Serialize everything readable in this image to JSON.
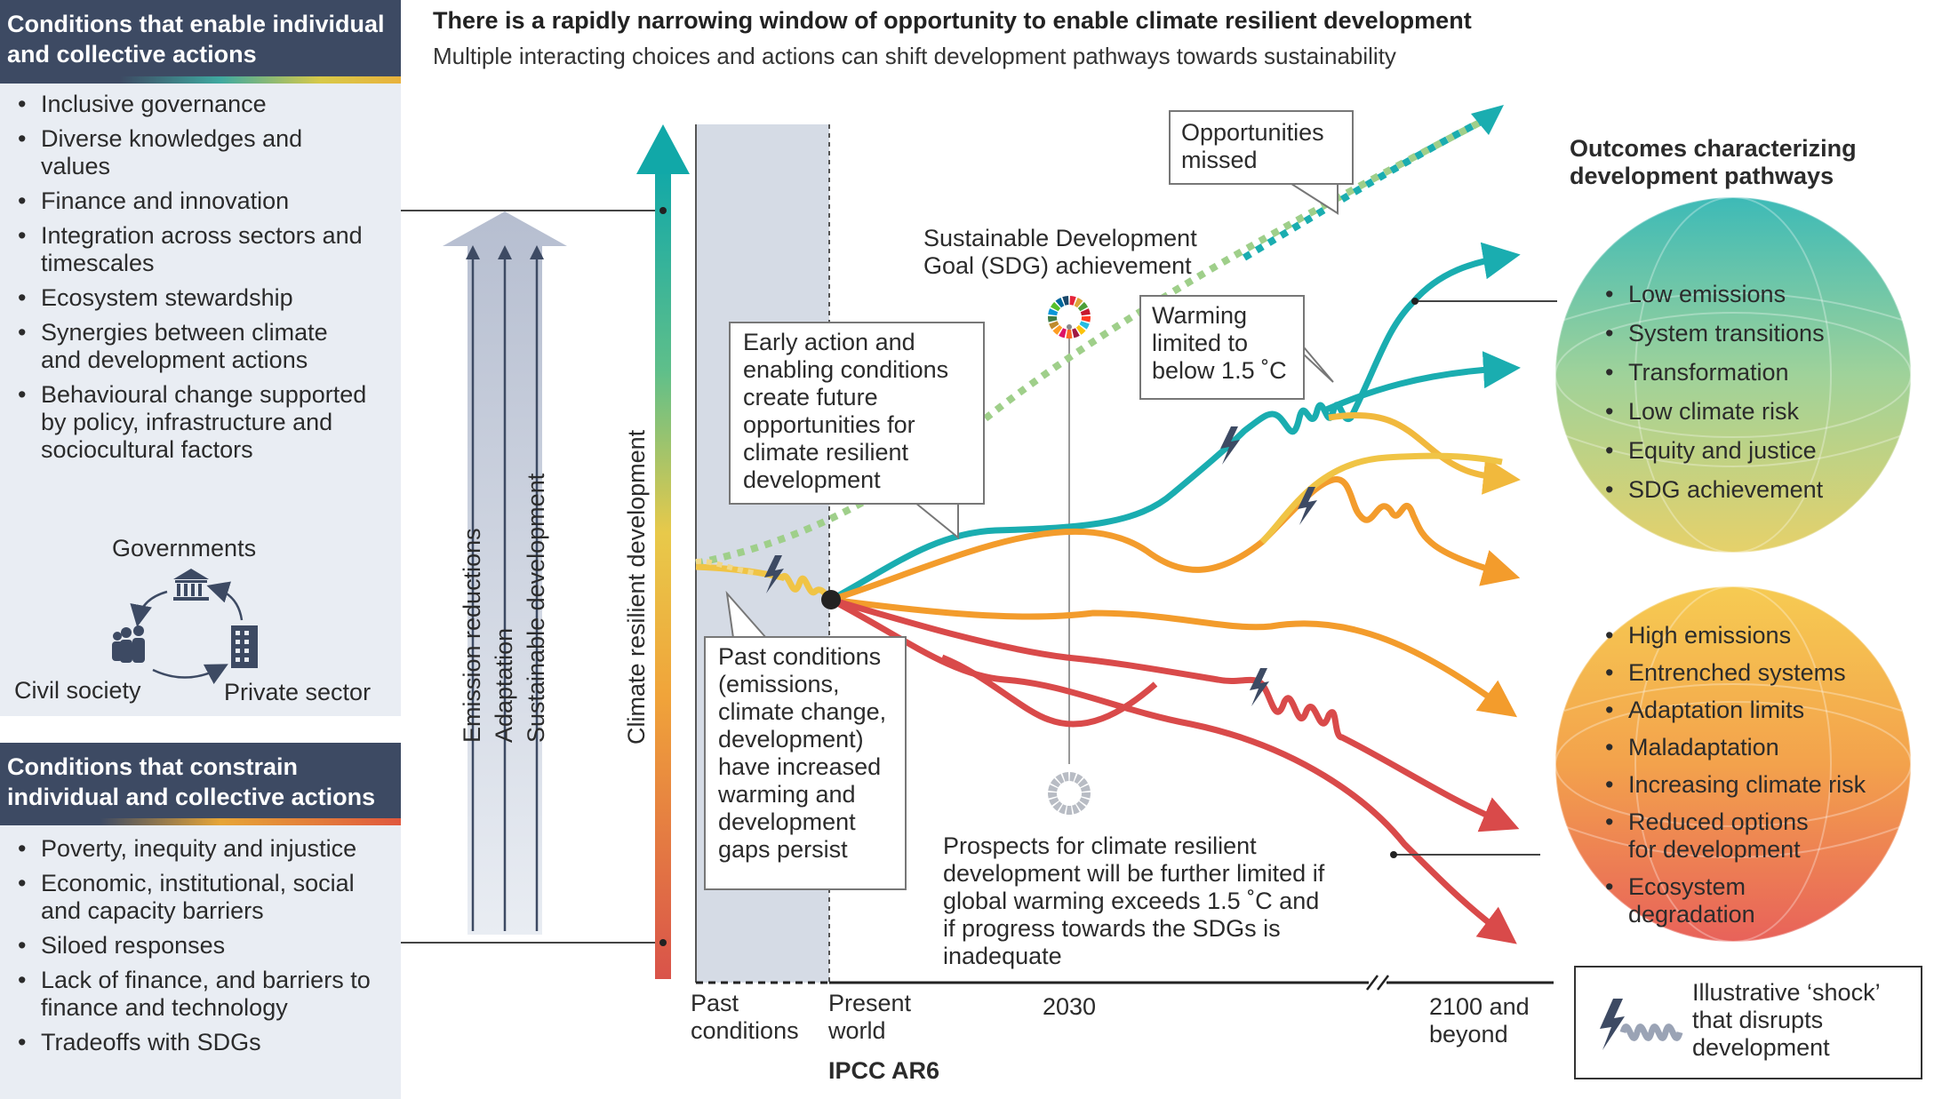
{
  "title": "There is a rapidly narrowing window of opportunity to enable climate resilient development",
  "subtitle": "Multiple interacting choices and actions can shift development pathways towards sustainability",
  "enable_panel": {
    "heading": "Conditions that enable individual and collective actions",
    "items": [
      "Inclusive governance",
      "Diverse knowledges and values",
      "Finance and innovation",
      "Integration across sectors and timescales",
      "Ecosystem stewardship",
      "Synergies between climate and development actions",
      "Behavioural change supported by policy, infrastructure and sociocultural factors"
    ],
    "actors": {
      "governments": "Governments",
      "civil_society": "Civil society",
      "private_sector": "Private sector"
    }
  },
  "constrain_panel": {
    "heading": "Conditions that constrain individual and collective actions",
    "items": [
      "Poverty, inequity and injustice",
      "Economic, institutional, social and capacity barriers",
      "Siloed responses",
      "Lack of finance, and barriers to finance and technology",
      "Tradeoffs with SDGs"
    ]
  },
  "arrows": {
    "emission": "Emission reductions",
    "adaptation": "Adaptation",
    "sustainable": "Sustainable development",
    "crd": "Climate resilient development"
  },
  "callouts": {
    "opportunities": "Opportunities missed",
    "sdg": "Sustainable Development Goal (SDG) achievement",
    "warming": "Warming limited to below 1.5 ˚C",
    "early_action": "Early action and enabling conditions create future opportunities for climate resilient development",
    "past_conditions": "Past conditions (emissions, climate change, development) have increased warming and development gaps persist",
    "prospects": "Prospects for climate resilient development will be further limited if global warming exceeds 1.5 ˚C and if progress towards the SDGs is inadequate"
  },
  "outcomes": {
    "heading": "Outcomes characterizing development pathways",
    "positive": [
      "Low emissions",
      "System transitions",
      "Transformation",
      "Low climate risk",
      "Equity and justice",
      "SDG achievement"
    ],
    "negative": [
      "High emissions",
      "Entrenched systems",
      "Adaptation limits",
      "Maladaptation",
      "Increasing climate risk",
      "Reduced options for development",
      "Ecosystem degradation"
    ]
  },
  "axis": {
    "past": "Past conditions",
    "present": "Present world",
    "y2030": "2030",
    "y2100": "2100 and beyond",
    "source": "IPCC AR6"
  },
  "legend": {
    "shock": "Illustrative ‘shock’ that disrupts development"
  }
}
